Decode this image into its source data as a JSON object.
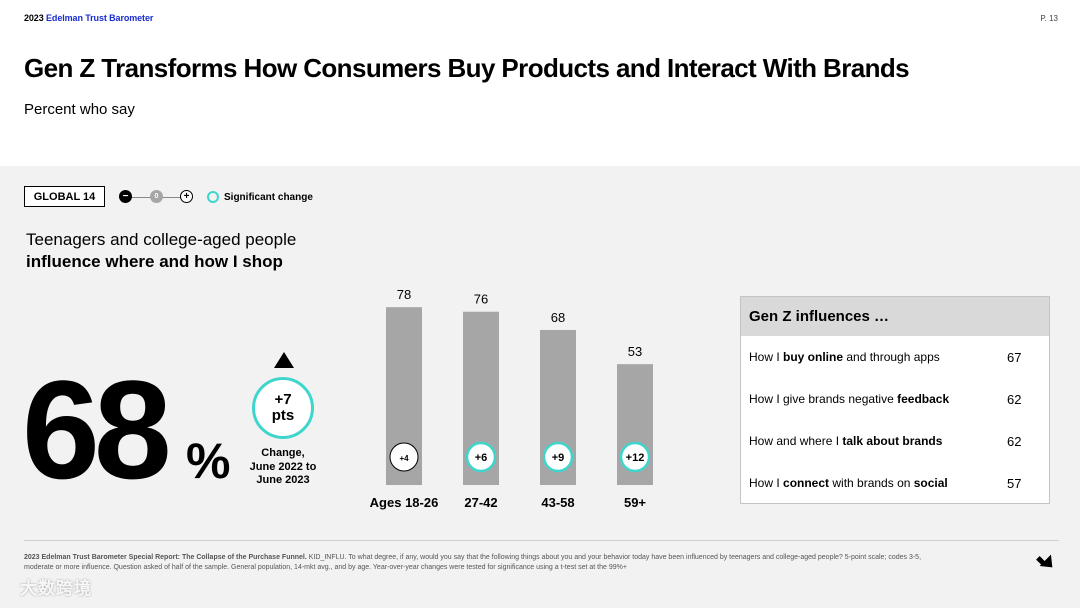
{
  "header": {
    "brand_year": "2023",
    "brand_name": "Edelman Trust Barometer",
    "page": "P. 13",
    "title": "Gen Z Transforms How Consumers Buy Products and Interact With Brands",
    "subtitle": "Percent who say"
  },
  "legend": {
    "global": "GLOBAL 14",
    "minus": "−",
    "zero": "0",
    "plus": "+",
    "significant": "Significant change",
    "accent_color": "#3ed6cc"
  },
  "statement": {
    "line1": "Teenagers and college-aged people",
    "line2": "influence where and how I shop"
  },
  "headline": {
    "value": "68",
    "unit": "%",
    "change": "+7\npts",
    "change_label": "Change,\nJune 2022 to\nJune 2023"
  },
  "chart_data": {
    "type": "bar",
    "title": "Teenagers and college-aged people influence where and how I shop",
    "categories": [
      "Ages 18-26",
      "27-42",
      "43-58",
      "59+"
    ],
    "values": [
      78,
      76,
      68,
      53
    ],
    "changes": [
      "+4",
      "+6",
      "+9",
      "+12"
    ],
    "significant": [
      false,
      true,
      true,
      true
    ],
    "ylim": [
      0,
      100
    ],
    "bar_color": "#a6a6a6",
    "xlabel": "",
    "ylabel": ""
  },
  "panel": {
    "title": "Gen Z influences …",
    "rows": [
      {
        "pre": "How I ",
        "bold": "buy online",
        "post": " and through apps",
        "value": "67"
      },
      {
        "pre": "How I give brands negative ",
        "bold": "feedback",
        "post": "",
        "value": "62"
      },
      {
        "pre": "How and where I ",
        "bold": "talk about brands",
        "post": "",
        "value": "62"
      },
      {
        "pre": "How I ",
        "bold": "connect",
        "mid": " with brands on ",
        "bold2": "social",
        "post": "",
        "value": "57"
      }
    ]
  },
  "footnote": {
    "bold": "2023 Edelman Trust Barometer Special Report: The Collapse of the Purchase Funnel.",
    "text": " KID_INFLU. To what degree, if any, would you say that the following things about you and your behavior today have been influenced by teenagers and college-aged people? 5-point scale; codes 3-5, moderate or more influence. Question asked of half of the sample. General population, 14-mkt avg., and by age. Year-over-year changes were tested for significance using a t-test set at the 99%+",
    "watermark": "大数跨境"
  }
}
